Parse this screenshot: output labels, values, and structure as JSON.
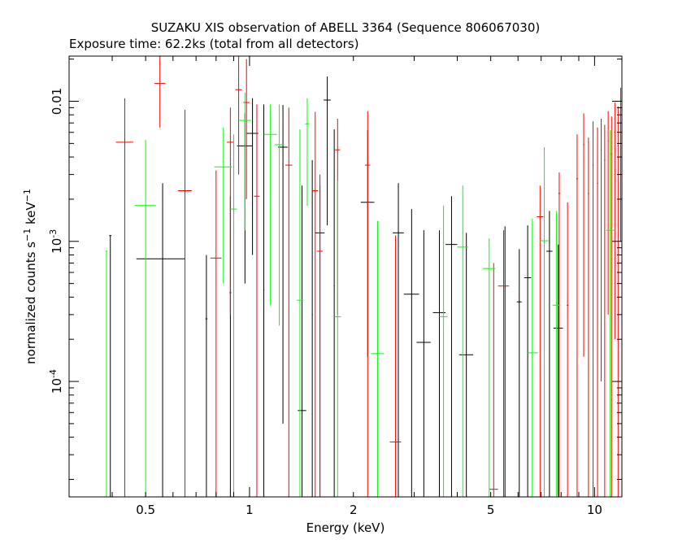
{
  "chart_data": {
    "type": "scatter",
    "title": "SUZAKU XIS observation of ABELL 3364 (Sequence 806067030)",
    "subtitle": "Exposure time: 62.2ks (total from all detectors)",
    "xlabel": "Energy (keV)",
    "ylabel": "normalized counts s^-1 keV^-1",
    "x_scale": "log",
    "y_scale": "log",
    "xlim": [
      0.3,
      12
    ],
    "ylim": [
      1.5e-05,
      0.021
    ],
    "x_tick_labels": [
      "0.5",
      "1",
      "2",
      "5",
      "10"
    ],
    "x_ticks": [
      0.5,
      1,
      2,
      5,
      10
    ],
    "y_tick_labels": [
      "10^-4",
      "10^-3",
      "0.01"
    ],
    "y_ticks": [
      0.0001,
      0.001,
      0.01
    ],
    "grid": false,
    "legend": "none",
    "series": [
      {
        "color": "#000000",
        "points": [
          {
            "x": 0.395,
            "y": 0.0011,
            "xerr": 0.003,
            "ylo": 1.5e-05,
            "yhi": 0.0011
          },
          {
            "x": 0.56,
            "y": 0.00075,
            "xerr": 0.09,
            "ylo": 1.5e-05,
            "yhi": 0.0026
          },
          {
            "x": 0.75,
            "y": 0.00028,
            "xerr": 0.005,
            "ylo": 1.5e-05,
            "yhi": 0.0008
          },
          {
            "x": 0.88,
            "y": 0.00043,
            "xerr": 0.005,
            "ylo": 1.5e-05,
            "yhi": 0.0021
          },
          {
            "x": 0.97,
            "y": 0.0048,
            "xerr": 0.05,
            "ylo": 0.0005,
            "yhi": 0.0082
          },
          {
            "x": 1.02,
            "y": 0.0059,
            "xerr": 0.04,
            "ylo": 0.0008,
            "yhi": 0.0105
          },
          {
            "x": 1.1,
            "y": 0.00045,
            "xerr": 0.004,
            "ylo": 1.5e-05,
            "yhi": 0.0095
          },
          {
            "x": 1.25,
            "y": 0.0047,
            "xerr": 0.04,
            "ylo": 5e-05,
            "yhi": 0.0094
          },
          {
            "x": 1.42,
            "y": 6.2e-05,
            "xerr": 0.04,
            "ylo": 1.5e-05,
            "yhi": 0.0025
          },
          {
            "x": 1.52,
            "y": 0.0003,
            "xerr": 0.005,
            "ylo": 1.5e-05,
            "yhi": 0.0038
          },
          {
            "x": 1.6,
            "y": 0.00115,
            "xerr": 0.05,
            "ylo": 1.5e-05,
            "yhi": 0.0025
          },
          {
            "x": 1.68,
            "y": 0.0102,
            "xerr": 0.04,
            "ylo": 0.0013,
            "yhi": 0.015
          },
          {
            "x": 1.76,
            "y": 0.00048,
            "xerr": 0.005,
            "ylo": 1.5e-05,
            "yhi": 0.0063
          },
          {
            "x": 2.2,
            "y": 0.0019,
            "xerr": 0.1,
            "ylo": 0.00015,
            "yhi": 0.0062
          },
          {
            "x": 2.7,
            "y": 0.00115,
            "xerr": 0.1,
            "ylo": 1.5e-05,
            "yhi": 0.0026
          },
          {
            "x": 2.95,
            "y": 0.00042,
            "xerr": 0.15,
            "ylo": 1.5e-05,
            "yhi": 0.0017
          },
          {
            "x": 3.2,
            "y": 0.00019,
            "xerr": 0.15,
            "ylo": 1.5e-05,
            "yhi": 0.0012
          },
          {
            "x": 3.55,
            "y": 0.00031,
            "xerr": 0.15,
            "ylo": 1.5e-05,
            "yhi": 0.0012
          },
          {
            "x": 3.85,
            "y": 0.00095,
            "xerr": 0.15,
            "ylo": 1.5e-05,
            "yhi": 0.0021
          },
          {
            "x": 4.25,
            "y": 0.000155,
            "xerr": 0.2,
            "ylo": 1.5e-05,
            "yhi": 0.00115
          },
          {
            "x": 5.5,
            "y": 0.00047,
            "xerr": 0.01,
            "ylo": 1.5e-05,
            "yhi": 0.00128
          },
          {
            "x": 6.05,
            "y": 0.00037,
            "xerr": 0.1,
            "ylo": 1.5e-05,
            "yhi": 0.00088
          },
          {
            "x": 6.4,
            "y": 0.00055,
            "xerr": 0.15,
            "ylo": 1.5e-05,
            "yhi": 0.0013
          },
          {
            "x": 7.4,
            "y": 0.00085,
            "xerr": 0.15,
            "ylo": 1.5e-05,
            "yhi": 0.00165
          },
          {
            "x": 7.85,
            "y": 0.00024,
            "xerr": 0.25,
            "ylo": 1.5e-05,
            "yhi": 0.00095
          }
        ]
      },
      {
        "color": "#ff0000",
        "points": [
          {
            "x": 0.435,
            "y": 0.0051,
            "xerr": 0.025,
            "ylo": 1.5e-05,
            "yhi": 0.0105
          },
          {
            "x": 0.55,
            "y": 0.0134,
            "xerr": 0.02,
            "ylo": 0.0065,
            "yhi": 0.022
          },
          {
            "x": 0.65,
            "y": 0.0023,
            "xerr": 0.03,
            "ylo": 1.5e-05,
            "yhi": 0.0087
          },
          {
            "x": 0.8,
            "y": 0.00076,
            "xerr": 0.03,
            "ylo": 1.5e-05,
            "yhi": 0.0032
          },
          {
            "x": 0.88,
            "y": 0.0051,
            "xerr": 0.02,
            "ylo": 0.0003,
            "yhi": 0.009
          },
          {
            "x": 0.93,
            "y": 0.0121,
            "xerr": 0.02,
            "ylo": 0.003,
            "yhi": 0.021
          },
          {
            "x": 0.98,
            "y": 0.0098,
            "xerr": 0.02,
            "ylo": 0.002,
            "yhi": 0.02
          },
          {
            "x": 1.05,
            "y": 0.0021,
            "xerr": 0.02,
            "ylo": 1.5e-05,
            "yhi": 0.0095
          },
          {
            "x": 1.3,
            "y": 0.0035,
            "xerr": 0.03,
            "ylo": 1.5e-05,
            "yhi": 0.009
          },
          {
            "x": 1.55,
            "y": 0.0023,
            "xerr": 0.03,
            "ylo": 1.5e-05,
            "yhi": 0.0084
          },
          {
            "x": 1.6,
            "y": 0.00085,
            "xerr": 0.03,
            "ylo": 1.5e-05,
            "yhi": 0.003
          },
          {
            "x": 1.8,
            "y": 0.0045,
            "xerr": 0.03,
            "ylo": 0.0003,
            "yhi": 0.0075
          },
          {
            "x": 2.2,
            "y": 0.0035,
            "xerr": 0.04,
            "ylo": 1.5e-05,
            "yhi": 0.0085
          },
          {
            "x": 2.65,
            "y": 3.7e-05,
            "xerr": 0.1,
            "ylo": 1.5e-05,
            "yhi": 0.0011
          },
          {
            "x": 5.1,
            "y": 1.7e-05,
            "xerr": 0.15,
            "ylo": 1.5e-05,
            "yhi": 0.0007
          },
          {
            "x": 5.45,
            "y": 0.00048,
            "xerr": 0.2,
            "ylo": 1.5e-05,
            "yhi": 0.0012
          },
          {
            "x": 6.95,
            "y": 0.0015,
            "xerr": 0.15,
            "ylo": 1.5e-05,
            "yhi": 0.0025
          },
          {
            "x": 7.9,
            "y": 0.0022,
            "xerr": 0.05,
            "ylo": 1.5e-05,
            "yhi": 0.0031
          },
          {
            "x": 8.35,
            "y": 0.00035,
            "xerr": 0.05,
            "ylo": 1.5e-05,
            "yhi": 0.0019
          },
          {
            "x": 8.9,
            "y": 0.0028,
            "xerr": 0.05,
            "ylo": 1.5e-05,
            "yhi": 0.0058
          },
          {
            "x": 9.3,
            "y": 0.0049,
            "xerr": 0.04,
            "ylo": 0.00015,
            "yhi": 0.0082
          },
          {
            "x": 9.6,
            "y": 0.0022,
            "xerr": 0.04,
            "ylo": 1.5e-05,
            "yhi": 0.0055
          },
          {
            "x": 9.9,
            "y": 0.0035,
            "xerr": 0.04,
            "ylo": 1.5e-05,
            "yhi": 0.0072
          },
          {
            "x": 10.2,
            "y": 0.0026,
            "xerr": 0.04,
            "ylo": 1.5e-05,
            "yhi": 0.0065
          },
          {
            "x": 10.45,
            "y": 0.0045,
            "xerr": 0.04,
            "ylo": 0.0001,
            "yhi": 0.0075
          },
          {
            "x": 10.7,
            "y": 0.0038,
            "xerr": 0.04,
            "ylo": 1.5e-05,
            "yhi": 0.0068
          },
          {
            "x": 10.95,
            "y": 0.0052,
            "xerr": 0.04,
            "ylo": 0.0003,
            "yhi": 0.0085
          },
          {
            "x": 11.2,
            "y": 0.0042,
            "xerr": 0.04,
            "ylo": 1.5e-05,
            "yhi": 0.0078
          },
          {
            "x": 11.45,
            "y": 0.006,
            "xerr": 0.04,
            "ylo": 0.0002,
            "yhi": 0.0098
          },
          {
            "x": 11.7,
            "y": 0.0048,
            "xerr": 0.04,
            "ylo": 1.5e-05,
            "yhi": 0.0092
          },
          {
            "x": 11.9,
            "y": 0.0102,
            "xerr": 0.04,
            "ylo": 0.001,
            "yhi": 0.0125
          }
        ]
      },
      {
        "color": "#00ff00",
        "points": [
          {
            "x": 0.385,
            "y": 0.00085,
            "xerr": 0.003,
            "ylo": 1.5e-05,
            "yhi": 0.00085
          },
          {
            "x": 0.5,
            "y": 0.0018,
            "xerr": 0.035,
            "ylo": 1.5e-05,
            "yhi": 0.0053
          },
          {
            "x": 0.84,
            "y": 0.0034,
            "xerr": 0.05,
            "ylo": 0.0005,
            "yhi": 0.0065
          },
          {
            "x": 0.9,
            "y": 0.0017,
            "xerr": 0.02,
            "ylo": 1.5e-05,
            "yhi": 0.0058
          },
          {
            "x": 0.97,
            "y": 0.0073,
            "xerr": 0.04,
            "ylo": 0.0012,
            "yhi": 0.0115
          },
          {
            "x": 1.15,
            "y": 0.0058,
            "xerr": 0.05,
            "ylo": 0.00035,
            "yhi": 0.0095
          },
          {
            "x": 1.22,
            "y": 0.0049,
            "xerr": 0.04,
            "ylo": 0.00025,
            "yhi": 0.0095
          },
          {
            "x": 1.4,
            "y": 0.00038,
            "xerr": 0.03,
            "ylo": 1.5e-05,
            "yhi": 0.0063
          },
          {
            "x": 1.47,
            "y": 0.0069,
            "xerr": 0.02,
            "ylo": 0.0018,
            "yhi": 0.0105
          },
          {
            "x": 1.8,
            "y": 0.00029,
            "xerr": 0.04,
            "ylo": 1.5e-05,
            "yhi": 0.0027
          },
          {
            "x": 2.35,
            "y": 0.000158,
            "xerr": 0.1,
            "ylo": 1.5e-05,
            "yhi": 0.0014
          },
          {
            "x": 3.65,
            "y": 0.00029,
            "xerr": 0.1,
            "ylo": 1.5e-05,
            "yhi": 0.0018
          },
          {
            "x": 4.15,
            "y": 0.00091,
            "xerr": 0.15,
            "ylo": 1.5e-05,
            "yhi": 0.0025
          },
          {
            "x": 4.95,
            "y": 0.00064,
            "xerr": 0.2,
            "ylo": 1.5e-05,
            "yhi": 0.00105
          },
          {
            "x": 6.6,
            "y": 0.00016,
            "xerr": 0.25,
            "ylo": 1.5e-05,
            "yhi": 0.00145
          },
          {
            "x": 7.15,
            "y": 0.00101,
            "xerr": 0.2,
            "ylo": 1.5e-05,
            "yhi": 0.0047
          },
          {
            "x": 7.75,
            "y": 0.00035,
            "xerr": 0.2,
            "ylo": 1.5e-05,
            "yhi": 0.00165
          },
          {
            "x": 11.1,
            "y": 0.0012,
            "xerr": 0.3,
            "ylo": 1.5e-05,
            "yhi": 0.0062
          }
        ]
      }
    ]
  }
}
